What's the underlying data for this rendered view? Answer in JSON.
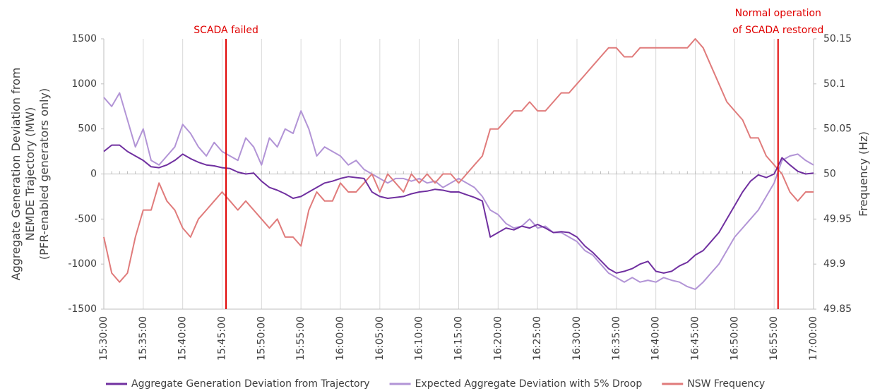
{
  "chart_data": {
    "type": "line",
    "y_label": [
      "Aggregate Generation Deviation from",
      "NEMDE Trajectory (MW)",
      "(PFR-enabled generators only)"
    ],
    "y2_label": "Frequency (Hz)",
    "categories": [
      "15:30:00",
      null,
      null,
      null,
      null,
      "15:35:00",
      null,
      null,
      null,
      null,
      "15:40:00",
      null,
      null,
      null,
      null,
      "15:45:00",
      null,
      null,
      null,
      null,
      "15:50:00",
      null,
      null,
      null,
      null,
      "15:55:00",
      null,
      null,
      null,
      null,
      "16:00:00",
      null,
      null,
      null,
      null,
      "16:05:00",
      null,
      null,
      null,
      null,
      "16:10:00",
      null,
      null,
      null,
      null,
      "16:15:00",
      null,
      null,
      null,
      null,
      "16:20:00",
      null,
      null,
      null,
      null,
      "16:25:00",
      null,
      null,
      null,
      null,
      "16:30:00",
      null,
      null,
      null,
      null,
      "16:35:00",
      null,
      null,
      null,
      null,
      "16:40:00",
      null,
      null,
      null,
      null,
      "16:45:00",
      null,
      null,
      null,
      null,
      "16:50:00",
      null,
      null,
      null,
      null,
      "16:55:00",
      null,
      null,
      null,
      null,
      "17:00:00"
    ],
    "ylim": [
      -1500,
      1500
    ],
    "yticks": [
      -1500,
      -1000,
      -500,
      0,
      500,
      1000,
      1500
    ],
    "y2lim": [
      49.85,
      50.15
    ],
    "y2ticks": [
      49.85,
      49.9,
      49.95,
      50,
      50.05,
      50.1,
      50.15
    ],
    "grid": true,
    "legend": "bottom",
    "series": [
      {
        "name": "Aggregate Generation Deviation from Trajectory",
        "color": "#7030a0",
        "values": [
          250,
          320,
          320,
          250,
          200,
          150,
          80,
          70,
          100,
          150,
          220,
          170,
          130,
          100,
          90,
          70,
          60,
          20,
          0,
          10,
          -80,
          -150,
          -180,
          -220,
          -270,
          -250,
          -200,
          -150,
          -100,
          -80,
          -50,
          -30,
          -40,
          -50,
          -200,
          -250,
          -270,
          -260,
          -250,
          -220,
          -200,
          -190,
          -170,
          -180,
          -200,
          -200,
          -230,
          -260,
          -300,
          -700,
          -650,
          -600,
          -620,
          -580,
          -600,
          -560,
          -600,
          -650,
          -640,
          -650,
          -700,
          -800,
          -870,
          -960,
          -1050,
          -1100,
          -1080,
          -1050,
          -1000,
          -970,
          -1080,
          -1100,
          -1080,
          -1020,
          -980,
          -900,
          -850,
          -750,
          -650,
          -500,
          -350,
          -200,
          -80,
          -10,
          -40,
          0,
          180,
          100,
          30,
          0,
          10
        ]
      },
      {
        "name": "Expected Aggregate Deviation with 5% Droop",
        "color": "#b294d6",
        "values": [
          850,
          750,
          900,
          600,
          300,
          500,
          150,
          100,
          200,
          300,
          550,
          450,
          300,
          200,
          350,
          250,
          200,
          150,
          400,
          300,
          100,
          400,
          300,
          500,
          450,
          700,
          500,
          200,
          300,
          250,
          200,
          100,
          150,
          50,
          0,
          -50,
          -100,
          -50,
          -50,
          -80,
          -50,
          -100,
          -80,
          -150,
          -100,
          -50,
          -100,
          -150,
          -250,
          -400,
          -450,
          -550,
          -600,
          -580,
          -500,
          -600,
          -580,
          -650,
          -650,
          -700,
          -750,
          -850,
          -900,
          -1000,
          -1100,
          -1150,
          -1200,
          -1150,
          -1200,
          -1180,
          -1200,
          -1150,
          -1180,
          -1200,
          -1250,
          -1280,
          -1200,
          -1100,
          -1000,
          -850,
          -700,
          -600,
          -500,
          -400,
          -250,
          -100,
          150,
          200,
          220,
          150,
          100
        ]
      },
      {
        "name": "NSW Frequency",
        "color": "#e07b7b",
        "axis": "y2",
        "values": [
          49.93,
          49.89,
          49.88,
          49.89,
          49.93,
          49.96,
          49.96,
          49.99,
          49.97,
          49.96,
          49.94,
          49.93,
          49.95,
          49.96,
          49.97,
          49.98,
          49.97,
          49.96,
          49.97,
          49.96,
          49.95,
          49.94,
          49.95,
          49.93,
          49.93,
          49.92,
          49.96,
          49.98,
          49.97,
          49.97,
          49.99,
          49.98,
          49.98,
          49.99,
          50.0,
          49.98,
          50.0,
          49.99,
          49.98,
          50.0,
          49.99,
          50.0,
          49.99,
          50.0,
          50.0,
          49.99,
          50.0,
          50.01,
          50.02,
          50.05,
          50.05,
          50.06,
          50.07,
          50.07,
          50.08,
          50.07,
          50.07,
          50.08,
          50.09,
          50.09,
          50.1,
          50.11,
          50.12,
          50.13,
          50.14,
          50.14,
          50.13,
          50.13,
          50.14,
          50.14,
          50.14,
          50.14,
          50.14,
          50.14,
          50.14,
          50.15,
          50.14,
          50.12,
          50.1,
          50.08,
          50.07,
          50.06,
          50.04,
          50.04,
          50.02,
          50.01,
          50.0,
          49.98,
          49.97,
          49.98,
          49.98
        ]
      }
    ],
    "annotations": [
      {
        "text": [
          "SCADA failed"
        ],
        "x": 15.5,
        "color": "#e00000"
      },
      {
        "text": [
          "Normal operation",
          "of SCADA restored"
        ],
        "x": 85.5,
        "color": "#e00000"
      }
    ]
  }
}
